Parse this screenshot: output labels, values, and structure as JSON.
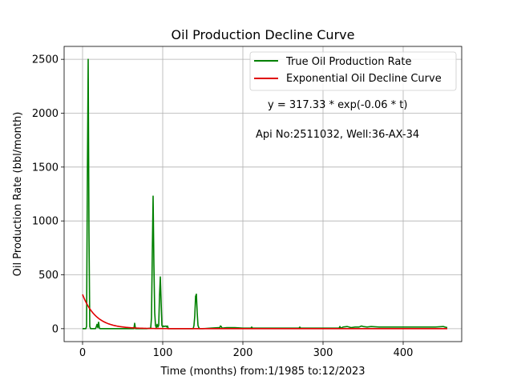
{
  "chart_data": {
    "type": "line",
    "title": "Oil Production Decline Curve",
    "xlabel": "Time (months) from:1/1985 to:12/2023",
    "ylabel": "Oil Production Rate (bbl/month)",
    "xlim": [
      -23,
      473
    ],
    "ylim": [
      -120,
      2620
    ],
    "xticks": [
      0,
      100,
      200,
      300,
      400
    ],
    "xtick_labels": [
      "0",
      "100",
      "200",
      "300",
      "400"
    ],
    "yticks": [
      0,
      500,
      1000,
      1500,
      2000,
      2500
    ],
    "ytick_labels": [
      "0",
      "500",
      "1000",
      "1500",
      "2000",
      "2500"
    ],
    "grid": true,
    "legend_position": "top-right",
    "annotations": [
      "y = 317.33 * exp(-0.06 * t)",
      "Api No:2511032, Well:36-AX-34"
    ],
    "series": [
      {
        "name": "True Oil Production Rate",
        "color": "#008000",
        "x": [
          0,
          4,
          5,
          6,
          7,
          8,
          9,
          10,
          16,
          17,
          18,
          19,
          20,
          21,
          22,
          30,
          45,
          60,
          64,
          65,
          66,
          70,
          80,
          85,
          86,
          87,
          88,
          89,
          90,
          91,
          92,
          93,
          94,
          95,
          96,
          97,
          98,
          99,
          100,
          101,
          102,
          104,
          105,
          106,
          107,
          110,
          120,
          135,
          138,
          139,
          140,
          141,
          142,
          143,
          144,
          145,
          146,
          150,
          160,
          170,
          171,
          172,
          173,
          174,
          180,
          190,
          200,
          210,
          211,
          212,
          220,
          240,
          260,
          270,
          271,
          272,
          290,
          310,
          320,
          321,
          322,
          325,
          330,
          335,
          340,
          345,
          348,
          350,
          355,
          360,
          370,
          380,
          390,
          400,
          410,
          420,
          430,
          440,
          450,
          452,
          455
        ],
        "y": [
          0,
          0,
          20,
          1400,
          2500,
          900,
          20,
          0,
          0,
          15,
          40,
          10,
          60,
          5,
          0,
          0,
          0,
          0,
          0,
          50,
          0,
          0,
          0,
          5,
          100,
          700,
          1230,
          600,
          150,
          30,
          10,
          40,
          15,
          30,
          300,
          480,
          250,
          30,
          15,
          25,
          20,
          25,
          15,
          25,
          0,
          0,
          0,
          0,
          0,
          30,
          120,
          300,
          320,
          150,
          30,
          10,
          0,
          0,
          5,
          10,
          5,
          25,
          20,
          5,
          10,
          10,
          5,
          5,
          15,
          5,
          5,
          5,
          5,
          5,
          15,
          5,
          5,
          5,
          5,
          20,
          5,
          15,
          20,
          10,
          15,
          15,
          25,
          20,
          15,
          20,
          15,
          15,
          15,
          15,
          15,
          15,
          15,
          15,
          20,
          15,
          10
        ]
      },
      {
        "name": "Exponential Oil Decline Curve",
        "color": "#e00000",
        "equation": {
          "a": 317.33,
          "b": 0.06
        },
        "x_range": [
          0,
          455
        ]
      }
    ]
  }
}
